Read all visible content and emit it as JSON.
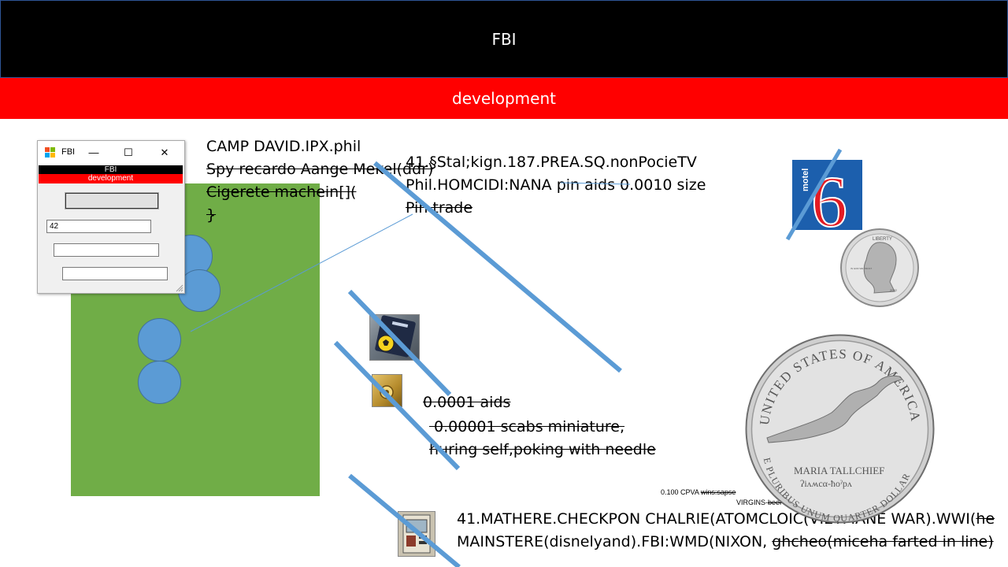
{
  "slide": {
    "header_title": "FBI",
    "subheader": "development"
  },
  "text_block_1": {
    "line1": "CAMP DAVID.IPX.phil",
    "line2": "Spy recardo Aange Mekel(ddr)",
    "line3": "Cigerete machein[](",
    "line4": "}"
  },
  "text_block_2": {
    "line1": "41.§Stal;kign.187.PREA.SQ.nonPocieTV",
    "line2": "Phil.HOMCIDI:NANA pin aids 0.0010 size",
    "line3": "Pin trade "
  },
  "text_block_3": {
    "line1": "0.0001 aids",
    "line2": " 0.00001 scabs miniature,",
    "line3": "huring self,poking with needle"
  },
  "text_block_4": {
    "line1_a": "41.MATHERE.CHECKPON CHALRIE(ATOMCLOIC(VIETMANE WAR).WWI(",
    "line1_b": "he",
    "line2_a": "MAINSTERE(disnelyand).FBI:WMD(NIXON, ",
    "line2_b": "ghcheo(miceha farted in line)"
  },
  "small_notes": {
    "note1_a": "0.100 CPVA ",
    "note1_b": "wins:sapse",
    "note2_a": "VIRGINS-",
    "note2_b": "beer"
  },
  "window": {
    "title": "FBI",
    "minimize_glyph": "—",
    "maximize_glyph": "☐",
    "close_glyph": "✕",
    "band_title": "FBI",
    "band_subtitle": "development",
    "button_label": "",
    "field1_value": "42",
    "field2_value": "",
    "field3_value": ""
  },
  "motel_logo": {
    "small_text": "motel",
    "number": "6",
    "brand_color": "#1c5fad"
  },
  "quarter_small": {
    "top_text": "LIBERTY",
    "left_text": "IN GOD WE TRUST",
    "year": "2022"
  },
  "quarter_large": {
    "arc_top": "UNITED STATES OF AMERICA",
    "name_line": "MARIA TALLCHIEF",
    "osage_line": "ʔiʌʍcα-ħoˀpʌ",
    "arc_bottom": "E PLURIBUS UNUM  QUARTER DOLLAR"
  },
  "colors": {
    "accent_blue": "#5b9bd5",
    "green": "#70ad47",
    "red": "#ff0000",
    "black": "#000000"
  }
}
